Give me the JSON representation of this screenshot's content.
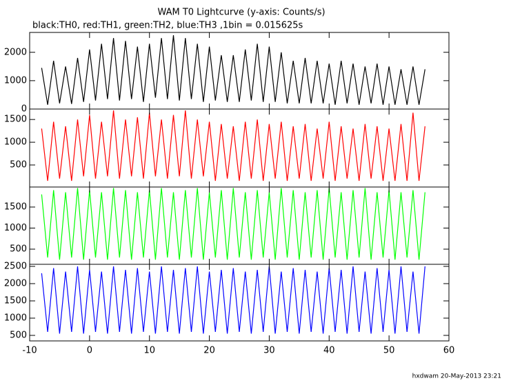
{
  "title": "WAM T0 Lightcurve (y-axis: Counts/s)",
  "subtitle": "black:TH0, red:TH1, green:TH2, blue:TH3 ,1bin = 0.015625s",
  "footer": "hxdwam 20-May-2013 23:21",
  "chart_data": [
    {
      "type": "line",
      "color": "#000000",
      "xlim": [
        -10,
        60
      ],
      "ylim": [
        0,
        2700
      ],
      "yticks": [
        0,
        1000,
        2000
      ],
      "x": [
        -8,
        -7,
        -6,
        -5,
        -4,
        -3,
        -2,
        -1,
        0,
        1,
        2,
        3,
        4,
        5,
        6,
        7,
        8,
        9,
        10,
        11,
        12,
        13,
        14,
        15,
        16,
        17,
        18,
        19,
        20,
        21,
        22,
        23,
        24,
        25,
        26,
        27,
        28,
        29,
        30,
        31,
        32,
        33,
        34,
        35,
        36,
        37,
        38,
        39,
        40,
        41,
        42,
        43,
        44,
        45,
        46,
        47,
        48,
        49,
        50,
        51,
        52,
        53,
        54,
        55,
        56
      ],
      "values": [
        1450,
        150,
        1700,
        200,
        1500,
        180,
        1800,
        250,
        2100,
        300,
        2300,
        350,
        2500,
        300,
        2400,
        350,
        2200,
        250,
        2300,
        400,
        2500,
        350,
        2600,
        300,
        2500,
        350,
        2300,
        250,
        2200,
        300,
        1900,
        250,
        1900,
        250,
        2100,
        300,
        2300,
        250,
        2200,
        250,
        2000,
        200,
        1700,
        200,
        1800,
        200,
        1700,
        200,
        1600,
        150,
        1700,
        200,
        1600,
        150,
        1500,
        200,
        1600,
        150,
        1500,
        150,
        1400,
        150,
        1500,
        150,
        1400
      ]
    },
    {
      "type": "line",
      "color": "#ff0000",
      "xlim": [
        -10,
        60
      ],
      "ylim": [
        15,
        1730
      ],
      "yticks": [
        500,
        1000,
        1500
      ],
      "x": [
        -8,
        -7,
        -6,
        -5,
        -4,
        -3,
        -2,
        -1,
        0,
        1,
        2,
        3,
        4,
        5,
        6,
        7,
        8,
        9,
        10,
        11,
        12,
        13,
        14,
        15,
        16,
        17,
        18,
        19,
        20,
        21,
        22,
        23,
        24,
        25,
        26,
        27,
        28,
        29,
        30,
        31,
        32,
        33,
        34,
        35,
        36,
        37,
        38,
        39,
        40,
        41,
        42,
        43,
        44,
        45,
        46,
        47,
        48,
        49,
        50,
        51,
        52,
        53,
        54,
        55,
        56
      ],
      "values": [
        1300,
        150,
        1450,
        200,
        1350,
        150,
        1500,
        250,
        1600,
        200,
        1450,
        250,
        1700,
        200,
        1500,
        250,
        1550,
        200,
        1650,
        250,
        1500,
        200,
        1600,
        250,
        1700,
        200,
        1500,
        250,
        1450,
        150,
        1400,
        200,
        1350,
        150,
        1450,
        200,
        1500,
        150,
        1400,
        200,
        1450,
        150,
        1350,
        200,
        1400,
        150,
        1300,
        200,
        1450,
        150,
        1350,
        200,
        1300,
        150,
        1400,
        200,
        1350,
        150,
        1300,
        150,
        1400,
        150,
        1650,
        150,
        1350
      ]
    },
    {
      "type": "line",
      "color": "#00ff00",
      "xlim": [
        -10,
        60
      ],
      "ylim": [
        140,
        1975
      ],
      "yticks": [
        500,
        1000,
        1500
      ],
      "x": [
        -8,
        -7,
        -6,
        -5,
        -4,
        -3,
        -2,
        -1,
        0,
        1,
        2,
        3,
        4,
        5,
        6,
        7,
        8,
        9,
        10,
        11,
        12,
        13,
        14,
        15,
        16,
        17,
        18,
        19,
        20,
        21,
        22,
        23,
        24,
        25,
        26,
        27,
        28,
        29,
        30,
        31,
        32,
        33,
        34,
        35,
        36,
        37,
        38,
        39,
        40,
        41,
        42,
        43,
        44,
        45,
        46,
        47,
        48,
        49,
        50,
        51,
        52,
        53,
        54,
        55,
        56
      ],
      "values": [
        1800,
        300,
        1900,
        250,
        1850,
        300,
        1950,
        250,
        1900,
        300,
        1850,
        250,
        1950,
        300,
        1900,
        250,
        1850,
        300,
        1900,
        250,
        1950,
        300,
        1850,
        250,
        1900,
        300,
        1950,
        250,
        1850,
        300,
        1900,
        250,
        1950,
        300,
        1850,
        250,
        1900,
        300,
        1850,
        250,
        1950,
        300,
        1900,
        250,
        1850,
        300,
        1900,
        250,
        1950,
        300,
        1850,
        250,
        1900,
        300,
        1950,
        250,
        1850,
        300,
        1900,
        250,
        1850,
        300,
        1900,
        250,
        1850
      ]
    },
    {
      "type": "line",
      "color": "#0000ff",
      "xlim": [
        -10,
        60
      ],
      "ylim": [
        340,
        2560
      ],
      "yticks": [
        500,
        1000,
        1500,
        2000,
        2500
      ],
      "xticks": [
        -10,
        0,
        10,
        20,
        30,
        40,
        50,
        60
      ],
      "x": [
        -8,
        -7,
        -6,
        -5,
        -4,
        -3,
        -2,
        -1,
        0,
        1,
        2,
        3,
        4,
        5,
        6,
        7,
        8,
        9,
        10,
        11,
        12,
        13,
        14,
        15,
        16,
        17,
        18,
        19,
        20,
        21,
        22,
        23,
        24,
        25,
        26,
        27,
        28,
        29,
        30,
        31,
        32,
        33,
        34,
        35,
        36,
        37,
        38,
        39,
        40,
        41,
        42,
        43,
        44,
        45,
        46,
        47,
        48,
        49,
        50,
        51,
        52,
        53,
        54,
        55,
        56
      ],
      "values": [
        2300,
        600,
        2450,
        550,
        2350,
        600,
        2500,
        550,
        2400,
        600,
        2350,
        550,
        2500,
        600,
        2400,
        550,
        2450,
        600,
        2350,
        550,
        2500,
        600,
        2400,
        550,
        2450,
        600,
        2500,
        550,
        2350,
        600,
        2400,
        550,
        2450,
        600,
        2350,
        550,
        2400,
        600,
        2500,
        550,
        2350,
        600,
        2450,
        550,
        2400,
        600,
        2350,
        550,
        2450,
        600,
        2400,
        550,
        2500,
        600,
        2350,
        550,
        2450,
        600,
        2400,
        550,
        2500,
        600,
        2350,
        550,
        2500
      ]
    }
  ]
}
